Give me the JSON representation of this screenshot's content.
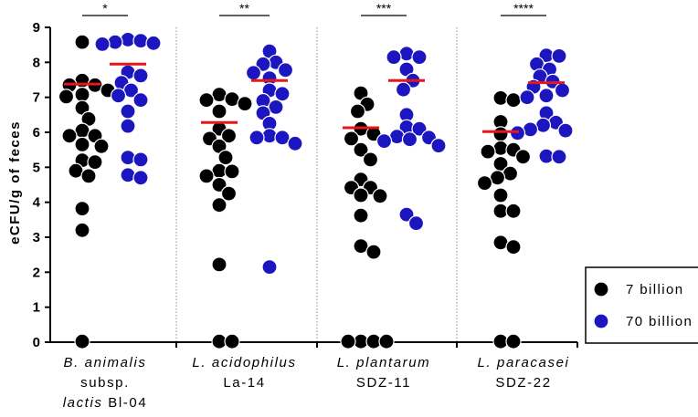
{
  "chart_data": {
    "type": "scatter",
    "ylabel": "eCFU/g of feces",
    "xlabel": "",
    "ylim": [
      0,
      9
    ],
    "yticks": [
      0,
      1,
      2,
      3,
      4,
      5,
      6,
      7,
      8,
      9
    ],
    "grid": false,
    "legend_position": "right",
    "categories": [
      {
        "lines": [
          {
            "parts": [
              {
                "text": "B. animalis",
                "italic": true
              }
            ]
          },
          {
            "parts": [
              {
                "text": "subsp.",
                "italic": false
              }
            ]
          },
          {
            "parts": [
              {
                "text": "lactis",
                "italic": true
              },
              {
                "text": " Bl-04",
                "italic": false
              }
            ]
          }
        ]
      },
      {
        "lines": [
          {
            "parts": [
              {
                "text": "L. acidophilus",
                "italic": true
              }
            ]
          },
          {
            "parts": [
              {
                "text": "La-14",
                "italic": false
              }
            ]
          }
        ]
      },
      {
        "lines": [
          {
            "parts": [
              {
                "text": "L. plantarum",
                "italic": true
              }
            ]
          },
          {
            "parts": [
              {
                "text": "SDZ-11",
                "italic": false
              }
            ]
          }
        ]
      },
      {
        "lines": [
          {
            "parts": [
              {
                "text": "L. paracasei",
                "italic": true
              }
            ]
          },
          {
            "parts": [
              {
                "text": "SDZ-22",
                "italic": false
              }
            ]
          }
        ]
      }
    ],
    "significance": [
      "*",
      "**",
      "***",
      "****"
    ],
    "mean_line_color": "#e8151b",
    "series": [
      {
        "name": "7 billion",
        "color": "#000000",
        "means": [
          7.38,
          6.28,
          6.13,
          6.02
        ],
        "values": [
          [
            8.58,
            7.48,
            7.35,
            7.2,
            7.35,
            7.02,
            7.08,
            6.7,
            6.38,
            6.05,
            5.9,
            5.9,
            5.65,
            5.6,
            5.2,
            5.15,
            4.9,
            4.75,
            3.82,
            3.2,
            0.02
          ],
          [
            7.08,
            6.95,
            6.92,
            6.82,
            6.6,
            6.1,
            5.9,
            5.82,
            5.6,
            5.28,
            4.9,
            4.88,
            4.75,
            4.5,
            4.25,
            3.92,
            2.22,
            0.02,
            0.02
          ],
          [
            7.12,
            6.8,
            6.6,
            6.1,
            5.95,
            5.82,
            5.5,
            5.22,
            4.65,
            4.42,
            4.42,
            4.2,
            4.18,
            3.62,
            2.75,
            2.58,
            0.02,
            0.02,
            0.02,
            0.02
          ],
          [
            6.98,
            6.92,
            6.3,
            5.95,
            5.55,
            5.5,
            5.45,
            5.3,
            5.1,
            4.82,
            4.7,
            4.55,
            4.2,
            3.75,
            3.75,
            2.85,
            2.72,
            0.02,
            0.02
          ]
        ]
      },
      {
        "name": "70 billion",
        "color": "#1c16c0",
        "means": [
          7.95,
          7.48,
          7.48,
          7.42
        ],
        "values": [
          [
            8.65,
            8.62,
            8.58,
            8.55,
            8.52,
            7.72,
            7.62,
            7.42,
            7.2,
            7.05,
            6.92,
            6.6,
            6.18,
            5.28,
            5.22,
            4.78,
            4.7
          ],
          [
            8.32,
            8.0,
            7.95,
            7.78,
            7.7,
            7.55,
            7.2,
            7.1,
            6.9,
            6.72,
            6.55,
            6.25,
            5.9,
            5.85,
            5.85,
            5.68,
            2.15
          ],
          [
            8.25,
            8.15,
            8.15,
            7.8,
            7.48,
            7.22,
            6.5,
            6.15,
            6.1,
            5.88,
            5.85,
            5.8,
            5.75,
            5.62,
            3.65,
            3.4
          ],
          [
            8.2,
            8.18,
            7.95,
            7.8,
            7.6,
            7.45,
            7.3,
            7.2,
            7.05,
            7.0,
            6.55,
            6.28,
            6.2,
            6.08,
            6.05,
            5.98,
            5.32,
            5.3
          ]
        ]
      }
    ]
  }
}
